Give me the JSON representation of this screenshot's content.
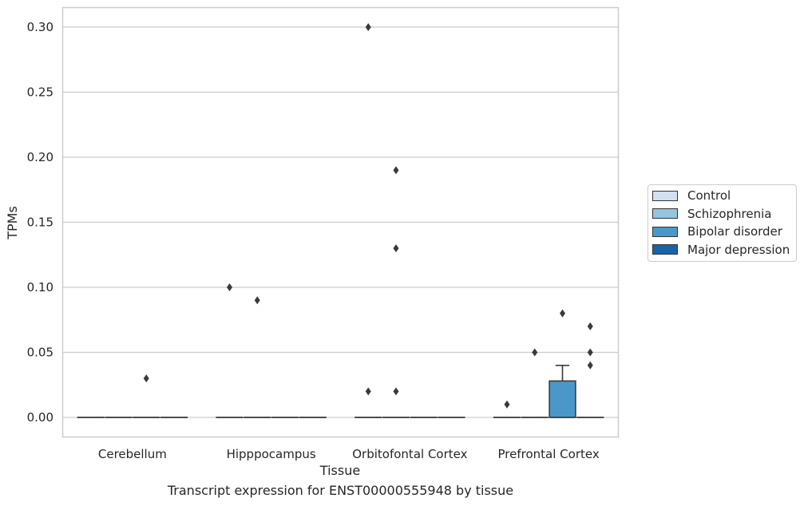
{
  "chart_data": {
    "type": "boxplot",
    "xlabel": "Tissue",
    "ylabel": "TPMs",
    "ylim": [
      -0.015,
      0.315
    ],
    "yticks": [
      "0.00",
      "0.05",
      "0.10",
      "0.15",
      "0.20",
      "0.25",
      "0.30"
    ],
    "grid": "horizontal",
    "legend_position": "right",
    "categories": [
      "Cerebellum",
      "Hipppocampus",
      "Orbitofontal Cortex",
      "Prefrontal Cortex"
    ],
    "series": [
      {
        "name": "Control",
        "color": "#d0e1f2"
      },
      {
        "name": "Schizophrenia",
        "color": "#94c4df"
      },
      {
        "name": "Bipolar disorder",
        "color": "#4a98c9"
      },
      {
        "name": "Major depression",
        "color": "#1764ab"
      }
    ],
    "boxes": [
      {
        "category": "Cerebellum",
        "series": "Control",
        "q1": 0,
        "median": 0,
        "q3": 0,
        "whisker_low": 0,
        "whisker_high": 0,
        "outliers": []
      },
      {
        "category": "Cerebellum",
        "series": "Schizophrenia",
        "q1": 0,
        "median": 0,
        "q3": 0,
        "whisker_low": 0,
        "whisker_high": 0,
        "outliers": []
      },
      {
        "category": "Cerebellum",
        "series": "Bipolar disorder",
        "q1": 0,
        "median": 0,
        "q3": 0,
        "whisker_low": 0,
        "whisker_high": 0,
        "outliers": [
          0.03
        ]
      },
      {
        "category": "Cerebellum",
        "series": "Major depression",
        "q1": 0,
        "median": 0,
        "q3": 0,
        "whisker_low": 0,
        "whisker_high": 0,
        "outliers": []
      },
      {
        "category": "Hipppocampus",
        "series": "Control",
        "q1": 0,
        "median": 0,
        "q3": 0,
        "whisker_low": 0,
        "whisker_high": 0,
        "outliers": [
          0.1
        ]
      },
      {
        "category": "Hipppocampus",
        "series": "Schizophrenia",
        "q1": 0,
        "median": 0,
        "q3": 0,
        "whisker_low": 0,
        "whisker_high": 0,
        "outliers": [
          0.09
        ]
      },
      {
        "category": "Hipppocampus",
        "series": "Bipolar disorder",
        "q1": 0,
        "median": 0,
        "q3": 0,
        "whisker_low": 0,
        "whisker_high": 0,
        "outliers": []
      },
      {
        "category": "Hipppocampus",
        "series": "Major depression",
        "q1": 0,
        "median": 0,
        "q3": 0,
        "whisker_low": 0,
        "whisker_high": 0,
        "outliers": []
      },
      {
        "category": "Orbitofontal Cortex",
        "series": "Control",
        "q1": 0,
        "median": 0,
        "q3": 0,
        "whisker_low": 0,
        "whisker_high": 0,
        "outliers": [
          0.3,
          0.02
        ]
      },
      {
        "category": "Orbitofontal Cortex",
        "series": "Schizophrenia",
        "q1": 0,
        "median": 0,
        "q3": 0,
        "whisker_low": 0,
        "whisker_high": 0,
        "outliers": [
          0.19,
          0.13,
          0.02
        ]
      },
      {
        "category": "Orbitofontal Cortex",
        "series": "Bipolar disorder",
        "q1": 0,
        "median": 0,
        "q3": 0,
        "whisker_low": 0,
        "whisker_high": 0,
        "outliers": []
      },
      {
        "category": "Orbitofontal Cortex",
        "series": "Major depression",
        "q1": 0,
        "median": 0,
        "q3": 0,
        "whisker_low": 0,
        "whisker_high": 0,
        "outliers": []
      },
      {
        "category": "Prefrontal Cortex",
        "series": "Control",
        "q1": 0,
        "median": 0,
        "q3": 0,
        "whisker_low": 0,
        "whisker_high": 0,
        "outliers": [
          0.01
        ]
      },
      {
        "category": "Prefrontal Cortex",
        "series": "Schizophrenia",
        "q1": 0,
        "median": 0,
        "q3": 0,
        "whisker_low": 0,
        "whisker_high": 0,
        "outliers": [
          0.05
        ]
      },
      {
        "category": "Prefrontal Cortex",
        "series": "Bipolar disorder",
        "q1": 0,
        "median": 0,
        "q3": 0.028,
        "whisker_low": 0,
        "whisker_high": 0.04,
        "outliers": [
          0.08
        ]
      },
      {
        "category": "Prefrontal Cortex",
        "series": "Major depression",
        "q1": 0,
        "median": 0,
        "q3": 0,
        "whisker_low": 0,
        "whisker_high": 0,
        "outliers": [
          0.07,
          0.05,
          0.04
        ]
      }
    ]
  },
  "caption": "Transcript expression for ENST00000555948 by tissue"
}
